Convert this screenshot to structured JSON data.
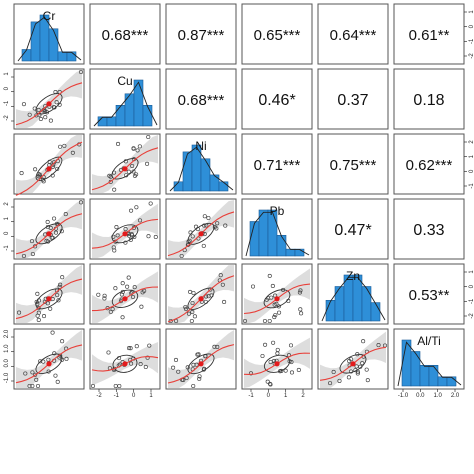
{
  "chart_data": {
    "type": "correlation-matrix",
    "variables": [
      "Cr",
      "Cu",
      "Ni",
      "Pb",
      "Zn",
      "Al/Ti"
    ],
    "correlations": [
      {
        "row": "Cr",
        "col": "Cu",
        "label": "0.68***"
      },
      {
        "row": "Cr",
        "col": "Ni",
        "label": "0.87***"
      },
      {
        "row": "Cr",
        "col": "Pb",
        "label": "0.65***"
      },
      {
        "row": "Cr",
        "col": "Zn",
        "label": "0.64***"
      },
      {
        "row": "Cr",
        "col": "Al/Ti",
        "label": "0.61**"
      },
      {
        "row": "Cu",
        "col": "Ni",
        "label": "0.68***"
      },
      {
        "row": "Cu",
        "col": "Pb",
        "label": "0.46*"
      },
      {
        "row": "Cu",
        "col": "Zn",
        "label": "0.37"
      },
      {
        "row": "Cu",
        "col": "Al/Ti",
        "label": "0.18"
      },
      {
        "row": "Ni",
        "col": "Pb",
        "label": "0.71***"
      },
      {
        "row": "Ni",
        "col": "Zn",
        "label": "0.75***"
      },
      {
        "row": "Ni",
        "col": "Al/Ti",
        "label": "0.62***"
      },
      {
        "row": "Pb",
        "col": "Zn",
        "label": "0.47*"
      },
      {
        "row": "Pb",
        "col": "Al/Ti",
        "label": "0.33"
      },
      {
        "row": "Zn",
        "col": "Al/Ti",
        "label": "0.53**"
      }
    ],
    "histograms": {
      "Cr": [
        0.25,
        0.85,
        1.0,
        0.7,
        0.2,
        0.2
      ],
      "Cu": [
        0.2,
        0.2,
        0.45,
        0.7,
        1.0,
        0.45
      ],
      "Ni": [
        0.2,
        0.85,
        1.0,
        0.7,
        0.35,
        0.2
      ],
      "Pb": [
        0.75,
        1.0,
        1.0,
        0.45,
        0.15,
        0.15
      ],
      "Zn": [
        0.45,
        0.75,
        1.0,
        1.0,
        0.75,
        0.4
      ],
      "Al/Ti": [
        1.0,
        0.75,
        0.45,
        0.45,
        0.2,
        0.2
      ]
    },
    "left_axis_ticks": {
      "Cu": [
        "1",
        "0",
        "-1",
        "-2"
      ],
      "Pb": [
        "2",
        "1",
        "0",
        "-1"
      ],
      "Al/Ti": [
        "2.0",
        "1.0",
        "0.0",
        "-1.0"
      ]
    },
    "right_axis_ticks": {
      "Cr": [
        "1",
        "0",
        "-1",
        "-2"
      ],
      "Ni": [
        "2",
        "1",
        "0",
        "-1"
      ],
      "Zn": [
        "1",
        "0",
        "-1",
        "-2"
      ]
    },
    "bottom_axis_ticks": {
      "Cu": [
        "-2",
        "-1",
        "0",
        "1"
      ],
      "Pb": [
        "-1",
        "0",
        "1",
        "2"
      ],
      "Al/Ti": [
        "-1.0",
        "0.0",
        "1.0",
        "2.0"
      ]
    },
    "colors": {
      "histogram_fill": "#2e8fd8",
      "histogram_border": "#1a5a96",
      "fit_line": "#e8403a",
      "center_point": "#e31a1c",
      "confidence_band": "#d9d9d9",
      "ellipse": "#333333",
      "points": "#444444",
      "panel_border": "#555555"
    }
  }
}
